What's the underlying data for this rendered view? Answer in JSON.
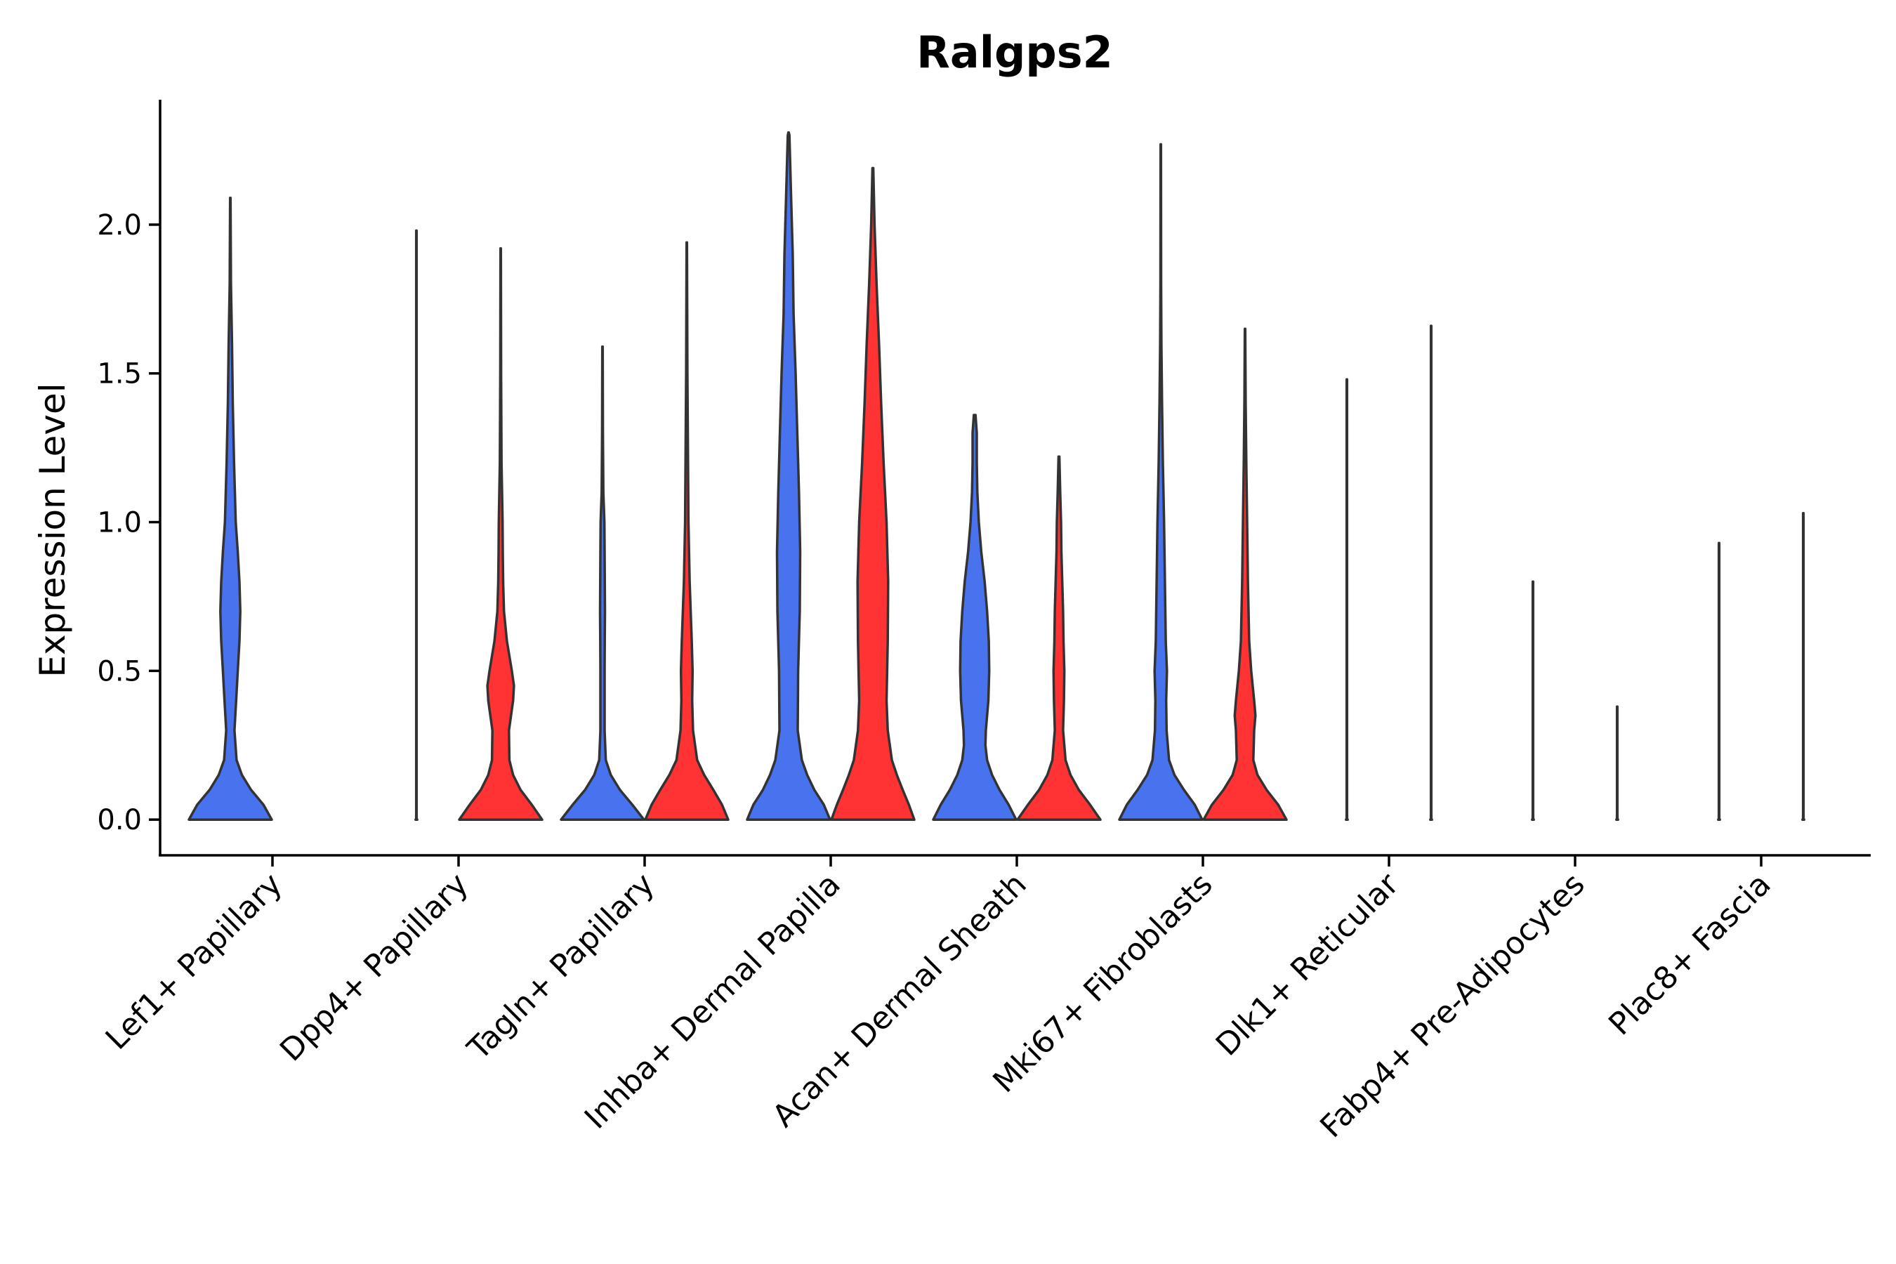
{
  "chart_data": {
    "type": "violin",
    "title": "Ralgps2",
    "xlabel": "",
    "ylabel": "Expression Level",
    "ylim": [
      -0.12,
      2.42
    ],
    "yticks": [
      "0.0",
      "0.5",
      "1.0",
      "1.5",
      "2.0"
    ],
    "ytick_values": [
      0,
      0.5,
      1.0,
      1.5,
      2.0
    ],
    "grid": false,
    "legend": "none",
    "colors": {
      "group_a": "#4872EE",
      "group_b": "#FF3333",
      "outline": "#333333"
    },
    "categories": [
      "Lef1+ Papillary",
      "Dpp4+ Papillary",
      "Tagln+ Papillary",
      "Inhba+ Dermal Papilla",
      "Acan+ Dermal Sheath",
      "Mki67+ Fibroblasts",
      "Dlk1+ Reticular",
      "Fabp4+ Pre-Adipocytes",
      "Plac8+ Fascia"
    ],
    "series": [
      {
        "name": "blue",
        "color": "#4872EE",
        "violins": [
          {
            "category": "Lef1+ Papillary",
            "max": 2.09,
            "density": [
              [
                0,
                1.0
              ],
              [
                0.05,
                0.8
              ],
              [
                0.1,
                0.5
              ],
              [
                0.15,
                0.28
              ],
              [
                0.2,
                0.15
              ],
              [
                0.3,
                0.1
              ],
              [
                0.4,
                0.14
              ],
              [
                0.5,
                0.18
              ],
              [
                0.6,
                0.22
              ],
              [
                0.7,
                0.24
              ],
              [
                0.8,
                0.22
              ],
              [
                0.9,
                0.18
              ],
              [
                1.0,
                0.13
              ],
              [
                1.2,
                0.09
              ],
              [
                1.4,
                0.06
              ],
              [
                1.6,
                0.04
              ],
              [
                1.8,
                0.015
              ],
              [
                2.0,
                0.008
              ],
              [
                2.09,
                0.005
              ]
            ]
          },
          {
            "category": "Dpp4+ Papillary",
            "max": 1.98,
            "density": [
              [
                0,
                0.02
              ],
              [
                0.003,
                0.006
              ],
              [
                0.02,
                0.005
              ],
              [
                1.98,
                0.005
              ]
            ]
          },
          {
            "category": "Tagln+ Papillary",
            "max": 1.59,
            "density": [
              [
                0,
                1.0
              ],
              [
                0.05,
                0.72
              ],
              [
                0.1,
                0.42
              ],
              [
                0.15,
                0.2
              ],
              [
                0.2,
                0.08
              ],
              [
                0.3,
                0.05
              ],
              [
                0.5,
                0.05
              ],
              [
                0.6,
                0.055
              ],
              [
                0.7,
                0.06
              ],
              [
                0.9,
                0.05
              ],
              [
                1.0,
                0.045
              ],
              [
                1.1,
                0.02
              ],
              [
                1.3,
                0.01
              ],
              [
                1.59,
                0.005
              ]
            ]
          },
          {
            "category": "Inhba+ Dermal Papilla",
            "max": 2.31,
            "density": [
              [
                0,
                1.0
              ],
              [
                0.05,
                0.85
              ],
              [
                0.1,
                0.62
              ],
              [
                0.15,
                0.45
              ],
              [
                0.2,
                0.32
              ],
              [
                0.3,
                0.22
              ],
              [
                0.5,
                0.23
              ],
              [
                0.7,
                0.27
              ],
              [
                0.9,
                0.28
              ],
              [
                1.1,
                0.25
              ],
              [
                1.3,
                0.21
              ],
              [
                1.5,
                0.17
              ],
              [
                1.7,
                0.12
              ],
              [
                1.9,
                0.1
              ],
              [
                2.1,
                0.06
              ],
              [
                2.3,
                0.02
              ],
              [
                2.31,
                0.005
              ]
            ]
          },
          {
            "category": "Acan+ Dermal Sheath",
            "max": 1.36,
            "density": [
              [
                0,
                1.0
              ],
              [
                0.05,
                0.82
              ],
              [
                0.1,
                0.6
              ],
              [
                0.15,
                0.42
              ],
              [
                0.2,
                0.3
              ],
              [
                0.25,
                0.26
              ],
              [
                0.3,
                0.27
              ],
              [
                0.4,
                0.33
              ],
              [
                0.5,
                0.35
              ],
              [
                0.6,
                0.34
              ],
              [
                0.7,
                0.3
              ],
              [
                0.8,
                0.24
              ],
              [
                0.9,
                0.16
              ],
              [
                1.0,
                0.1
              ],
              [
                1.1,
                0.065
              ],
              [
                1.2,
                0.05
              ],
              [
                1.3,
                0.05
              ],
              [
                1.36,
                0.02
              ]
            ]
          },
          {
            "category": "Mki67+ Fibroblasts",
            "max": 2.27,
            "density": [
              [
                0,
                1.0
              ],
              [
                0.05,
                0.82
              ],
              [
                0.1,
                0.56
              ],
              [
                0.15,
                0.33
              ],
              [
                0.2,
                0.2
              ],
              [
                0.3,
                0.14
              ],
              [
                0.4,
                0.13
              ],
              [
                0.5,
                0.15
              ],
              [
                0.6,
                0.12
              ],
              [
                0.8,
                0.1
              ],
              [
                1.0,
                0.08
              ],
              [
                1.2,
                0.05
              ],
              [
                1.4,
                0.03
              ],
              [
                1.6,
                0.015
              ],
              [
                1.8,
                0.008
              ],
              [
                2.27,
                0.005
              ]
            ]
          },
          {
            "category": "Dlk1+ Reticular",
            "max": 1.48,
            "density": [
              [
                0,
                0.02
              ],
              [
                0.003,
                0.006
              ],
              [
                0.02,
                0.005
              ],
              [
                1.48,
                0.005
              ]
            ]
          },
          {
            "category": "Fabp4+ Pre-Adipocytes",
            "max": 0.8,
            "density": [
              [
                0,
                0.02
              ],
              [
                0.003,
                0.006
              ],
              [
                0.02,
                0.005
              ],
              [
                0.8,
                0.005
              ]
            ]
          },
          {
            "category": "Plac8+ Fascia",
            "max": 0.93,
            "density": [
              [
                0,
                0.02
              ],
              [
                0.003,
                0.006
              ],
              [
                0.02,
                0.005
              ],
              [
                0.93,
                0.005
              ]
            ]
          }
        ]
      },
      {
        "name": "red",
        "color": "#FF3333",
        "violins": [
          {
            "category": "Dpp4+ Papillary",
            "max": 1.92,
            "density": [
              [
                0,
                1.0
              ],
              [
                0.05,
                0.75
              ],
              [
                0.1,
                0.48
              ],
              [
                0.15,
                0.3
              ],
              [
                0.2,
                0.21
              ],
              [
                0.3,
                0.2
              ],
              [
                0.4,
                0.3
              ],
              [
                0.45,
                0.32
              ],
              [
                0.5,
                0.27
              ],
              [
                0.6,
                0.15
              ],
              [
                0.7,
                0.08
              ],
              [
                0.8,
                0.06
              ],
              [
                0.9,
                0.05
              ],
              [
                1.0,
                0.045
              ],
              [
                1.2,
                0.02
              ],
              [
                1.5,
                0.01
              ],
              [
                1.92,
                0.005
              ]
            ]
          },
          {
            "category": "Tagln+ Papillary",
            "max": 1.94,
            "density": [
              [
                0,
                1.0
              ],
              [
                0.05,
                0.85
              ],
              [
                0.1,
                0.64
              ],
              [
                0.15,
                0.42
              ],
              [
                0.2,
                0.25
              ],
              [
                0.3,
                0.15
              ],
              [
                0.4,
                0.13
              ],
              [
                0.5,
                0.14
              ],
              [
                0.6,
                0.12
              ],
              [
                0.8,
                0.07
              ],
              [
                1.0,
                0.04
              ],
              [
                1.2,
                0.03
              ],
              [
                1.5,
                0.015
              ],
              [
                1.94,
                0.005
              ]
            ]
          },
          {
            "category": "Inhba+ Dermal Papilla",
            "max": 2.19,
            "density": [
              [
                0,
                1.0
              ],
              [
                0.05,
                0.87
              ],
              [
                0.1,
                0.72
              ],
              [
                0.15,
                0.58
              ],
              [
                0.2,
                0.46
              ],
              [
                0.3,
                0.36
              ],
              [
                0.4,
                0.33
              ],
              [
                0.6,
                0.36
              ],
              [
                0.8,
                0.37
              ],
              [
                1.0,
                0.33
              ],
              [
                1.2,
                0.26
              ],
              [
                1.4,
                0.2
              ],
              [
                1.6,
                0.15
              ],
              [
                1.8,
                0.09
              ],
              [
                2.0,
                0.04
              ],
              [
                2.19,
                0.01
              ]
            ]
          },
          {
            "category": "Acan+ Dermal Sheath",
            "max": 1.22,
            "density": [
              [
                0,
                1.0
              ],
              [
                0.05,
                0.75
              ],
              [
                0.1,
                0.48
              ],
              [
                0.15,
                0.28
              ],
              [
                0.2,
                0.16
              ],
              [
                0.3,
                0.1
              ],
              [
                0.4,
                0.12
              ],
              [
                0.5,
                0.13
              ],
              [
                0.6,
                0.11
              ],
              [
                0.7,
                0.1
              ],
              [
                0.8,
                0.08
              ],
              [
                0.9,
                0.06
              ],
              [
                1.0,
                0.05
              ],
              [
                1.1,
                0.03
              ],
              [
                1.22,
                0.01
              ]
            ]
          },
          {
            "category": "Mki67+ Fibroblasts",
            "max": 1.65,
            "density": [
              [
                0,
                1.0
              ],
              [
                0.05,
                0.8
              ],
              [
                0.1,
                0.52
              ],
              [
                0.15,
                0.3
              ],
              [
                0.2,
                0.2
              ],
              [
                0.3,
                0.22
              ],
              [
                0.35,
                0.25
              ],
              [
                0.4,
                0.22
              ],
              [
                0.5,
                0.15
              ],
              [
                0.6,
                0.1
              ],
              [
                0.8,
                0.07
              ],
              [
                1.0,
                0.05
              ],
              [
                1.2,
                0.03
              ],
              [
                1.4,
                0.015
              ],
              [
                1.65,
                0.005
              ]
            ]
          },
          {
            "category": "Dlk1+ Reticular",
            "max": 1.66,
            "density": [
              [
                0,
                0.02
              ],
              [
                0.003,
                0.006
              ],
              [
                0.02,
                0.005
              ],
              [
                1.66,
                0.005
              ]
            ]
          },
          {
            "category": "Fabp4+ Pre-Adipocytes",
            "max": 0.38,
            "density": [
              [
                0,
                0.02
              ],
              [
                0.003,
                0.006
              ],
              [
                0.02,
                0.005
              ],
              [
                0.38,
                0.005
              ]
            ]
          },
          {
            "category": "Plac8+ Fascia",
            "max": 1.03,
            "density": [
              [
                0,
                0.02
              ],
              [
                0.003,
                0.006
              ],
              [
                0.02,
                0.005
              ],
              [
                1.03,
                0.005
              ]
            ]
          }
        ]
      }
    ]
  }
}
